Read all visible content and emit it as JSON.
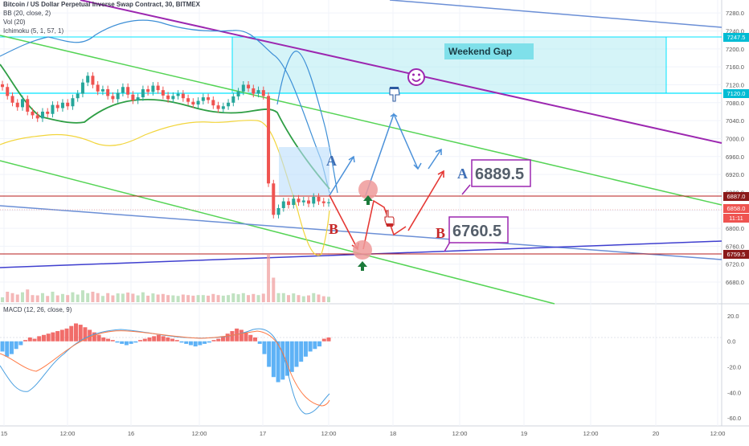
{
  "header": {
    "title": "Bitcoin / US Dollar Perpetual Inverse Swap Contract, 30, BITMEX",
    "indicators": [
      "BB (20, close, 2)",
      "Vol (20)",
      "Ichimoku (5, 1, 57, 1)"
    ],
    "macd_label": "MACD (12, 26, close, 9)"
  },
  "annotations": {
    "weekend_gap": "Weekend Gap",
    "label_a1": "A",
    "label_b1": "B",
    "label_a2": "A",
    "label_b2": "B",
    "target_a": "6889.5",
    "target_b": "6760.5"
  },
  "price_tags": {
    "gap_top": "7247.5",
    "gap_bottom": "7120.0",
    "level_high": "6887.0",
    "current": "6858.0",
    "countdown": "11:11",
    "level_low": "6759.5"
  },
  "colors": {
    "up_candle": "#26a69a",
    "down_candle": "#ef5350",
    "gap_fill": "#b2ebf2",
    "gap_border": "#00e5ff",
    "purple_line": "#9c27b0",
    "green_line": "#4caf50",
    "blue_path": "#4a90d9",
    "red_path": "#e53935",
    "level_line": "#b71c1c"
  },
  "chart_data": [
    {
      "type": "candlestick",
      "title": "Bitcoin / US Dollar Perpetual Inverse Swap Contract, 30, BITMEX",
      "y_ticks": [
        7280.0,
        7240.0,
        7200.0,
        7160.0,
        7120.0,
        7080.0,
        7040.0,
        7000.0,
        6960.0,
        6920.0,
        6880.0,
        6840.0,
        6800.0,
        6760.0,
        6720.0,
        6680.0
      ],
      "ylim": [
        6655,
        7300
      ],
      "x_ticks": [
        "15",
        "12:00",
        "16",
        "12:00",
        "17",
        "12:00",
        "18",
        "12:00",
        "19",
        "12:00",
        "20",
        "12:00"
      ],
      "levels": [
        7247.5,
        7120.0,
        6887.0,
        6858.0,
        6759.5
      ],
      "close_series": [
        7115,
        7095,
        7080,
        7070,
        7088,
        7060,
        7052,
        7045,
        7060,
        7055,
        7075,
        7068,
        7080,
        7072,
        7090,
        7100,
        7125,
        7140,
        7120,
        7105,
        7110,
        7095,
        7088,
        7102,
        7115,
        7098,
        7085,
        7092,
        7110,
        7104,
        7118,
        7108,
        7096,
        7088,
        7095,
        7100,
        7090,
        7082,
        7076,
        7084,
        7092,
        7086,
        7074,
        7066,
        7072,
        7080,
        7094,
        7105,
        7120,
        7112,
        7100,
        7108,
        7095,
        6900,
        6830,
        6845,
        6860,
        6852,
        6866,
        6858,
        6862,
        6855,
        6870,
        6860,
        6856,
        6858
      ]
    },
    {
      "type": "bar",
      "title": "MACD (12, 26, close, 9)",
      "y_ticks": [
        20.0,
        0.0,
        -20.0,
        -40.0,
        -60.0
      ],
      "ylim": [
        -65,
        25
      ],
      "histogram": [
        -8,
        -12,
        -10,
        -6,
        -3,
        1,
        3,
        2,
        4,
        5,
        6,
        7,
        8,
        9,
        10,
        12,
        14,
        13,
        11,
        9,
        7,
        5,
        3,
        2,
        1,
        -1,
        -2,
        -3,
        -2,
        -1,
        1,
        2,
        3,
        4,
        5,
        4,
        3,
        2,
        1,
        -1,
        -2,
        -3,
        -4,
        -3,
        -2,
        -1,
        1,
        2,
        4,
        6,
        8,
        10,
        9,
        7,
        5,
        3,
        -2,
        -10,
        -20,
        -28,
        -32,
        -30,
        -27,
        -24,
        -20,
        -16,
        -12,
        -8,
        -6,
        -4,
        2,
        3
      ]
    }
  ]
}
